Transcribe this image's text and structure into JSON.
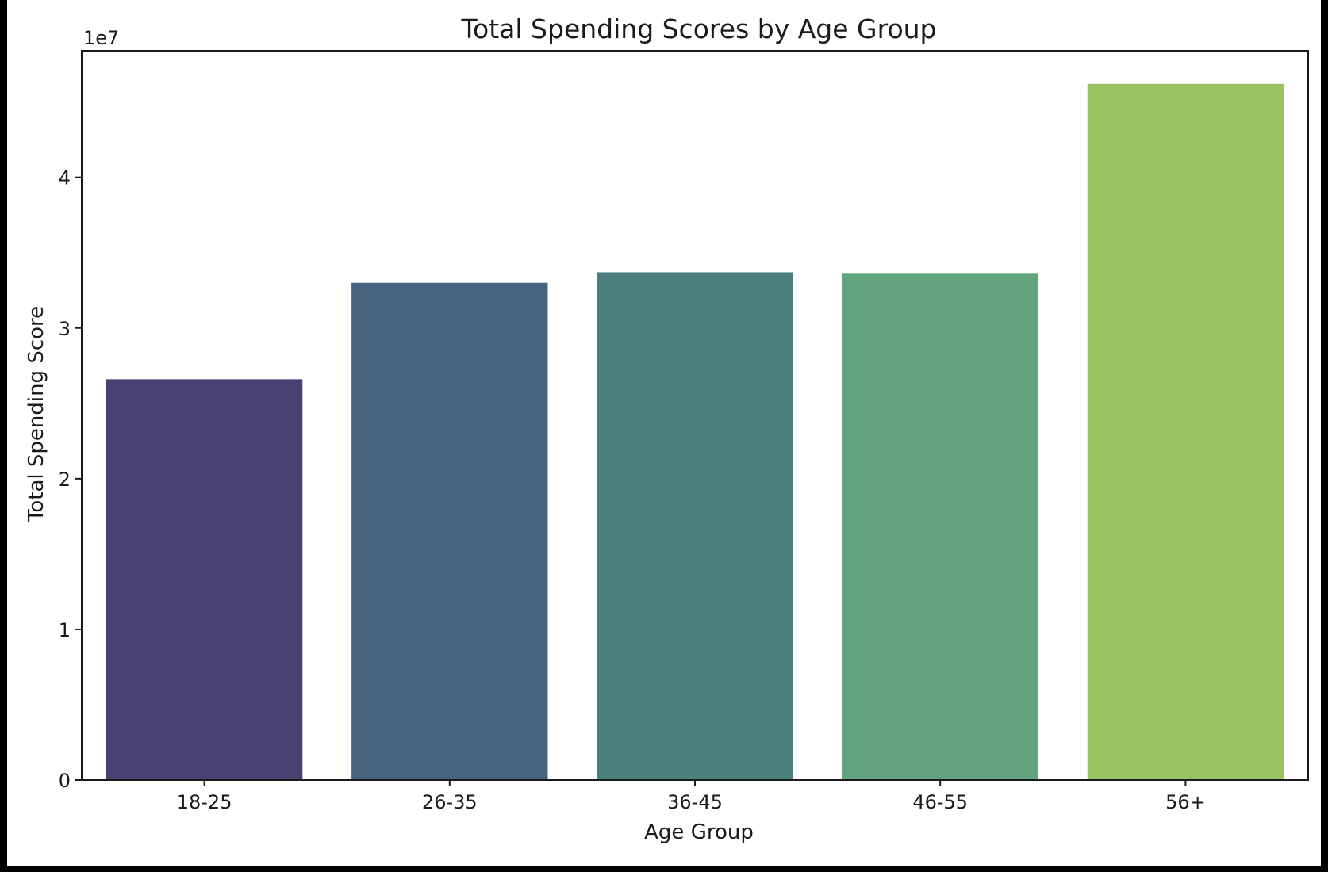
{
  "chart_data": {
    "type": "bar",
    "title": "Total Spending Scores by Age Group",
    "xlabel": "Age Group",
    "ylabel": "Total Spending Score",
    "categories": [
      "18-25",
      "26-35",
      "36-45",
      "46-55",
      "56+"
    ],
    "values": [
      26600000,
      33000000,
      33700000,
      33600000,
      46200000
    ],
    "colors": [
      "#4a4172",
      "#46647f",
      "#4a7f7d",
      "#62a47b",
      "#9bc262"
    ],
    "ylim": [
      0,
      48400000
    ],
    "yticks": [
      0,
      10000000,
      20000000,
      30000000,
      40000000
    ],
    "ytick_labels": [
      "0",
      "1",
      "2",
      "3",
      "4"
    ],
    "y_offset_label": "1e7",
    "grid": false,
    "legend": "none"
  }
}
